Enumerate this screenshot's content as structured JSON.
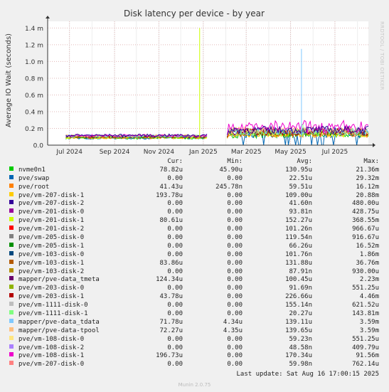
{
  "chart_data": {
    "type": "line",
    "title": "Disk latency per device - by year",
    "ylabel": "Average IO Wait (seconds)",
    "y_ticks": [
      "0.0",
      "0.2 m",
      "0.4 m",
      "0.6 m",
      "0.8 m",
      "1.0 m",
      "1.2 m",
      "1.4 m"
    ],
    "ylim": [
      0,
      0.00148
    ],
    "x_ticks": [
      {
        "label": "Jul 2024",
        "date": "2024-07-01"
      },
      {
        "label": "Sep 2024",
        "date": "2024-09-01"
      },
      {
        "label": "Nov 2024",
        "date": "2024-11-01"
      },
      {
        "label": "Jan 2025",
        "date": "2025-01-01"
      },
      {
        "label": "Mar 2025",
        "date": "2025-03-01"
      },
      {
        "label": "May 2025",
        "date": "2025-05-01"
      },
      {
        "label": "Jul 2025",
        "date": "2025-07-01"
      }
    ],
    "xlim": [
      "2024-06-01",
      "2025-08-16"
    ],
    "grid": true,
    "spikes": [
      {
        "series": "pve/vm-201-disk-1",
        "date": "2024-12-27",
        "value": 0.0014
      },
      {
        "series": "mapper/pve-data_tdata",
        "date": "2025-05-16",
        "value": 0.00115
      },
      {
        "series": "pve/vm-1111-disk-1",
        "date": "2025-05-18",
        "value": 0.00025
      }
    ],
    "legend_header": {
      "cur": "Cur:",
      "min": "Min:",
      "avg": "Avg:",
      "max": "Max:"
    },
    "series": [
      {
        "name": "nvme0n1",
        "color": "#00cc00",
        "cur": "78.82u",
        "min": "45.90u",
        "avg": "130.95u",
        "max": "21.36m"
      },
      {
        "name": "pve/swap",
        "color": "#0066b3",
        "cur": "0.00",
        "min": "0.00",
        "avg": "22.51u",
        "max": "29.32m"
      },
      {
        "name": "pve/root",
        "color": "#ff8000",
        "cur": "41.43u",
        "min": "245.78n",
        "avg": "59.51u",
        "max": "16.12m"
      },
      {
        "name": "pve/vm-207-disk-1",
        "color": "#ffcc00",
        "cur": "193.78u",
        "min": "0.00",
        "avg": "109.00u",
        "max": "20.88m"
      },
      {
        "name": "pve/vm-207-disk-2",
        "color": "#330099",
        "cur": "0.00",
        "min": "0.00",
        "avg": "41.60n",
        "max": "480.00u"
      },
      {
        "name": "pve/vm-201-disk-0",
        "color": "#990099",
        "cur": "0.00",
        "min": "0.00",
        "avg": "93.81n",
        "max": "428.75u"
      },
      {
        "name": "pve/vm-201-disk-1",
        "color": "#ccff00",
        "cur": "80.61u",
        "min": "0.00",
        "avg": "152.27u",
        "max": "368.55m"
      },
      {
        "name": "pve/vm-201-disk-2",
        "color": "#ff0000",
        "cur": "0.00",
        "min": "0.00",
        "avg": "101.26n",
        "max": "966.67u"
      },
      {
        "name": "pve/vm-205-disk-0",
        "color": "#808080",
        "cur": "0.00",
        "min": "0.00",
        "avg": "119.54n",
        "max": "916.67u"
      },
      {
        "name": "pve/vm-205-disk-1",
        "color": "#008f00",
        "cur": "0.00",
        "min": "0.00",
        "avg": "66.26u",
        "max": "16.52m"
      },
      {
        "name": "pve/vm-103-disk-0",
        "color": "#00487d",
        "cur": "0.00",
        "min": "0.00",
        "avg": "101.76n",
        "max": "1.86m"
      },
      {
        "name": "pve/vm-103-disk-1",
        "color": "#b35a00",
        "cur": "83.86u",
        "min": "0.00",
        "avg": "131.88u",
        "max": "36.76m"
      },
      {
        "name": "pve/vm-103-disk-2",
        "color": "#b38f00",
        "cur": "0.00",
        "min": "0.00",
        "avg": "87.91n",
        "max": "930.00u"
      },
      {
        "name": "mapper/pve-data_tmeta",
        "color": "#6b006b",
        "cur": "124.34u",
        "min": "0.00",
        "avg": "100.45u",
        "max": "2.23m"
      },
      {
        "name": "pve/vm-203-disk-0",
        "color": "#8fb300",
        "cur": "0.00",
        "min": "0.00",
        "avg": "91.69n",
        "max": "551.25u"
      },
      {
        "name": "pve/vm-203-disk-1",
        "color": "#b30000",
        "cur": "43.78u",
        "min": "0.00",
        "avg": "226.66u",
        "max": "4.46m"
      },
      {
        "name": "pve/vm-1111-disk-0",
        "color": "#bebebe",
        "cur": "0.00",
        "min": "0.00",
        "avg": "155.14n",
        "max": "621.52u"
      },
      {
        "name": "pve/vm-1111-disk-1",
        "color": "#80ff80",
        "cur": "0.00",
        "min": "0.00",
        "avg": "20.27u",
        "max": "143.81m"
      },
      {
        "name": "mapper/pve-data_tdata",
        "color": "#80c9ff",
        "cur": "71.78u",
        "min": "4.34u",
        "avg": "139.11u",
        "max": "3.59m"
      },
      {
        "name": "mapper/pve-data-tpool",
        "color": "#ffc080",
        "cur": "72.27u",
        "min": "4.35u",
        "avg": "139.65u",
        "max": "3.59m"
      },
      {
        "name": "pve/vm-108-disk-0",
        "color": "#ffe680",
        "cur": "0.00",
        "min": "0.00",
        "avg": "59.23n",
        "max": "551.25u"
      },
      {
        "name": "pve/vm-108-disk-2",
        "color": "#aa80ff",
        "cur": "0.00",
        "min": "0.00",
        "avg": "48.58n",
        "max": "409.79u"
      },
      {
        "name": "pve/vm-108-disk-1",
        "color": "#ee00cc",
        "cur": "196.73u",
        "min": "0.00",
        "avg": "170.34u",
        "max": "91.56m"
      },
      {
        "name": "pve/vm-207-disk-0",
        "color": "#ff8080",
        "cur": "0.00",
        "min": "0.00",
        "avg": "59.98n",
        "max": "762.14u"
      }
    ]
  },
  "footer": {
    "last_update": "Last update: Sat Aug 16 17:00:15 2025",
    "munin": "Munin 2.0.75",
    "rrdtool": "RRDTOOL / TOBI OETIKER"
  }
}
